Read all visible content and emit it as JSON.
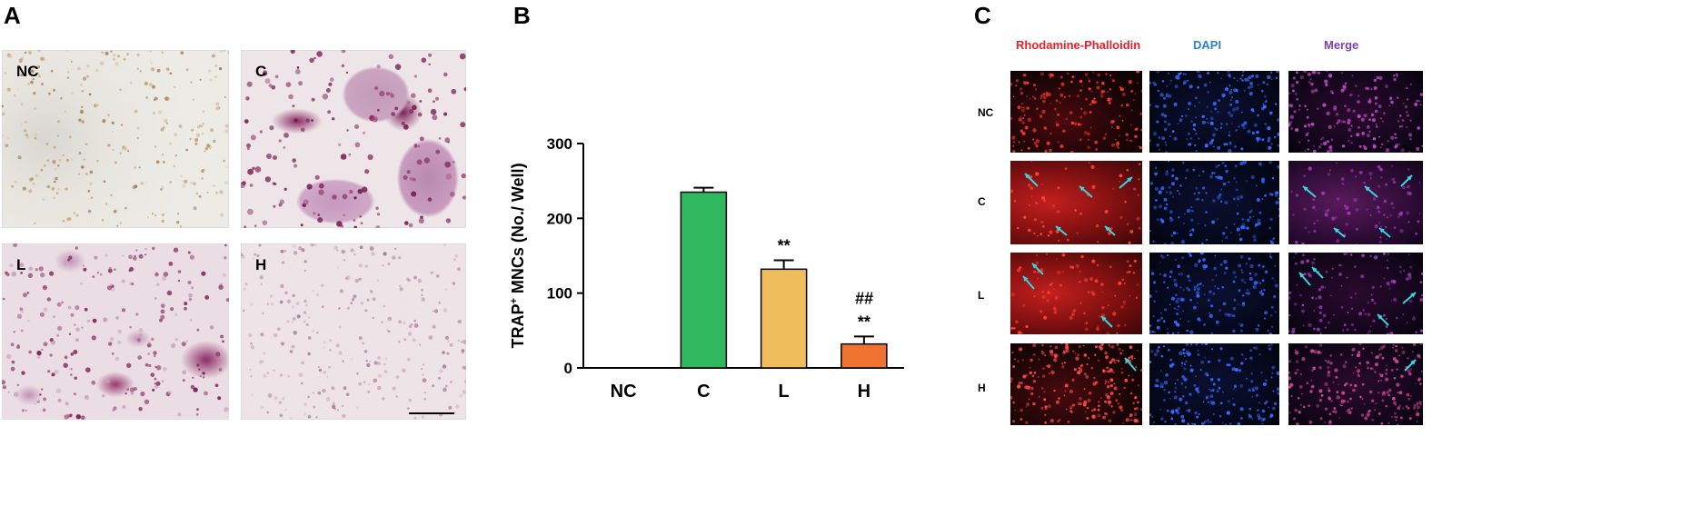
{
  "panel_letters": {
    "a": "A",
    "b": "B",
    "c": "C"
  },
  "panel_a": {
    "labels": {
      "nc": "NC",
      "c": "C",
      "l": "L",
      "h": "H"
    }
  },
  "chart_data": {
    "type": "bar",
    "categories": [
      "NC",
      "C",
      "L",
      "H"
    ],
    "values": [
      0,
      235,
      132,
      32
    ],
    "errors": [
      0,
      6,
      12,
      10
    ],
    "bar_colors": [
      "#ffffff",
      "#30b85f",
      "#f0bd5c",
      "#ee7230"
    ],
    "annotations": [
      "",
      "",
      "**",
      "##\n**"
    ],
    "ylabel_main": "TRAP",
    "ylabel_sup": "+",
    "ylabel_rest": " MNCs (No./ Well)",
    "yticks": [
      0,
      100,
      200,
      300
    ],
    "ylim": [
      0,
      300
    ]
  },
  "panel_c": {
    "headers": {
      "rhodamine": "Rhodamine-Phalloidin",
      "dapi": "DAPI",
      "merge": "Merge"
    },
    "header_colors": {
      "rhodamine": "#e8202a",
      "dapi": "#2a7fd6",
      "merge": "#7b3fb0"
    },
    "rows": {
      "nc": "NC",
      "c": "C",
      "l": "L",
      "h": "H"
    },
    "arrow_color": "#3ad6e0"
  }
}
